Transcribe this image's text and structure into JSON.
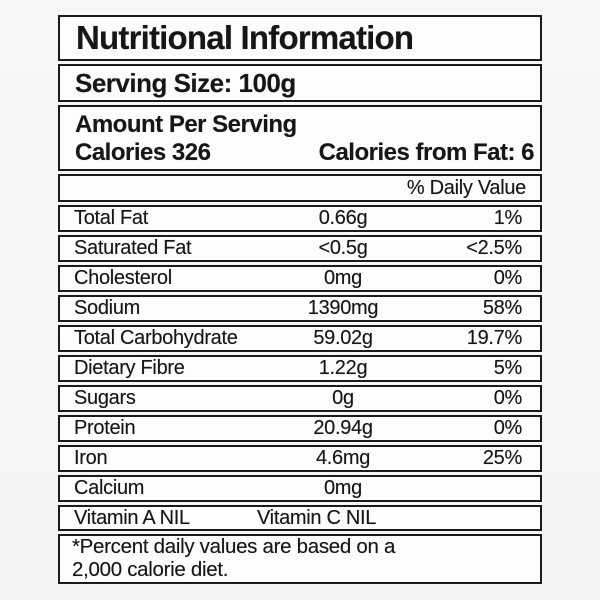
{
  "label": {
    "title": "Nutritional Information",
    "serving_size": "Serving Size: 100g",
    "amount_per_serving": "Amount Per Serving",
    "calories": "Calories 326",
    "calories_from_fat": "Calories from Fat: 6",
    "daily_value_header": "% Daily Value",
    "rows": [
      {
        "name": "Total Fat",
        "amount": "0.66g",
        "dv": "1%"
      },
      {
        "name": "Saturated Fat",
        "amount": "<0.5g",
        "dv": "<2.5%"
      },
      {
        "name": "Cholesterol",
        "amount": "0mg",
        "dv": "0%"
      },
      {
        "name": "Sodium",
        "amount": "1390mg",
        "dv": "58%"
      },
      {
        "name": "Total Carbohydrate",
        "amount": "59.02g",
        "dv": "19.7%"
      },
      {
        "name": "Dietary Fibre",
        "amount": "1.22g",
        "dv": "5%"
      },
      {
        "name": "Sugars",
        "amount": "0g",
        "dv": "0%"
      },
      {
        "name": "Protein",
        "amount": "20.94g",
        "dv": "0%"
      },
      {
        "name": "Iron",
        "amount": "4.6mg",
        "dv": "25%"
      },
      {
        "name": "Calcium",
        "amount": "0mg",
        "dv": ""
      }
    ],
    "vitamin_a": "Vitamin A NIL",
    "vitamin_c": "Vitamin C NIL",
    "footnote_line1": "*Percent daily values are based on a",
    "footnote_line2": "2,000 calorie diet."
  },
  "colors": {
    "border": "#1b1b1b",
    "label_background": "#fdfdfc",
    "page_background": "#f6f6f4",
    "text": "#161616"
  }
}
